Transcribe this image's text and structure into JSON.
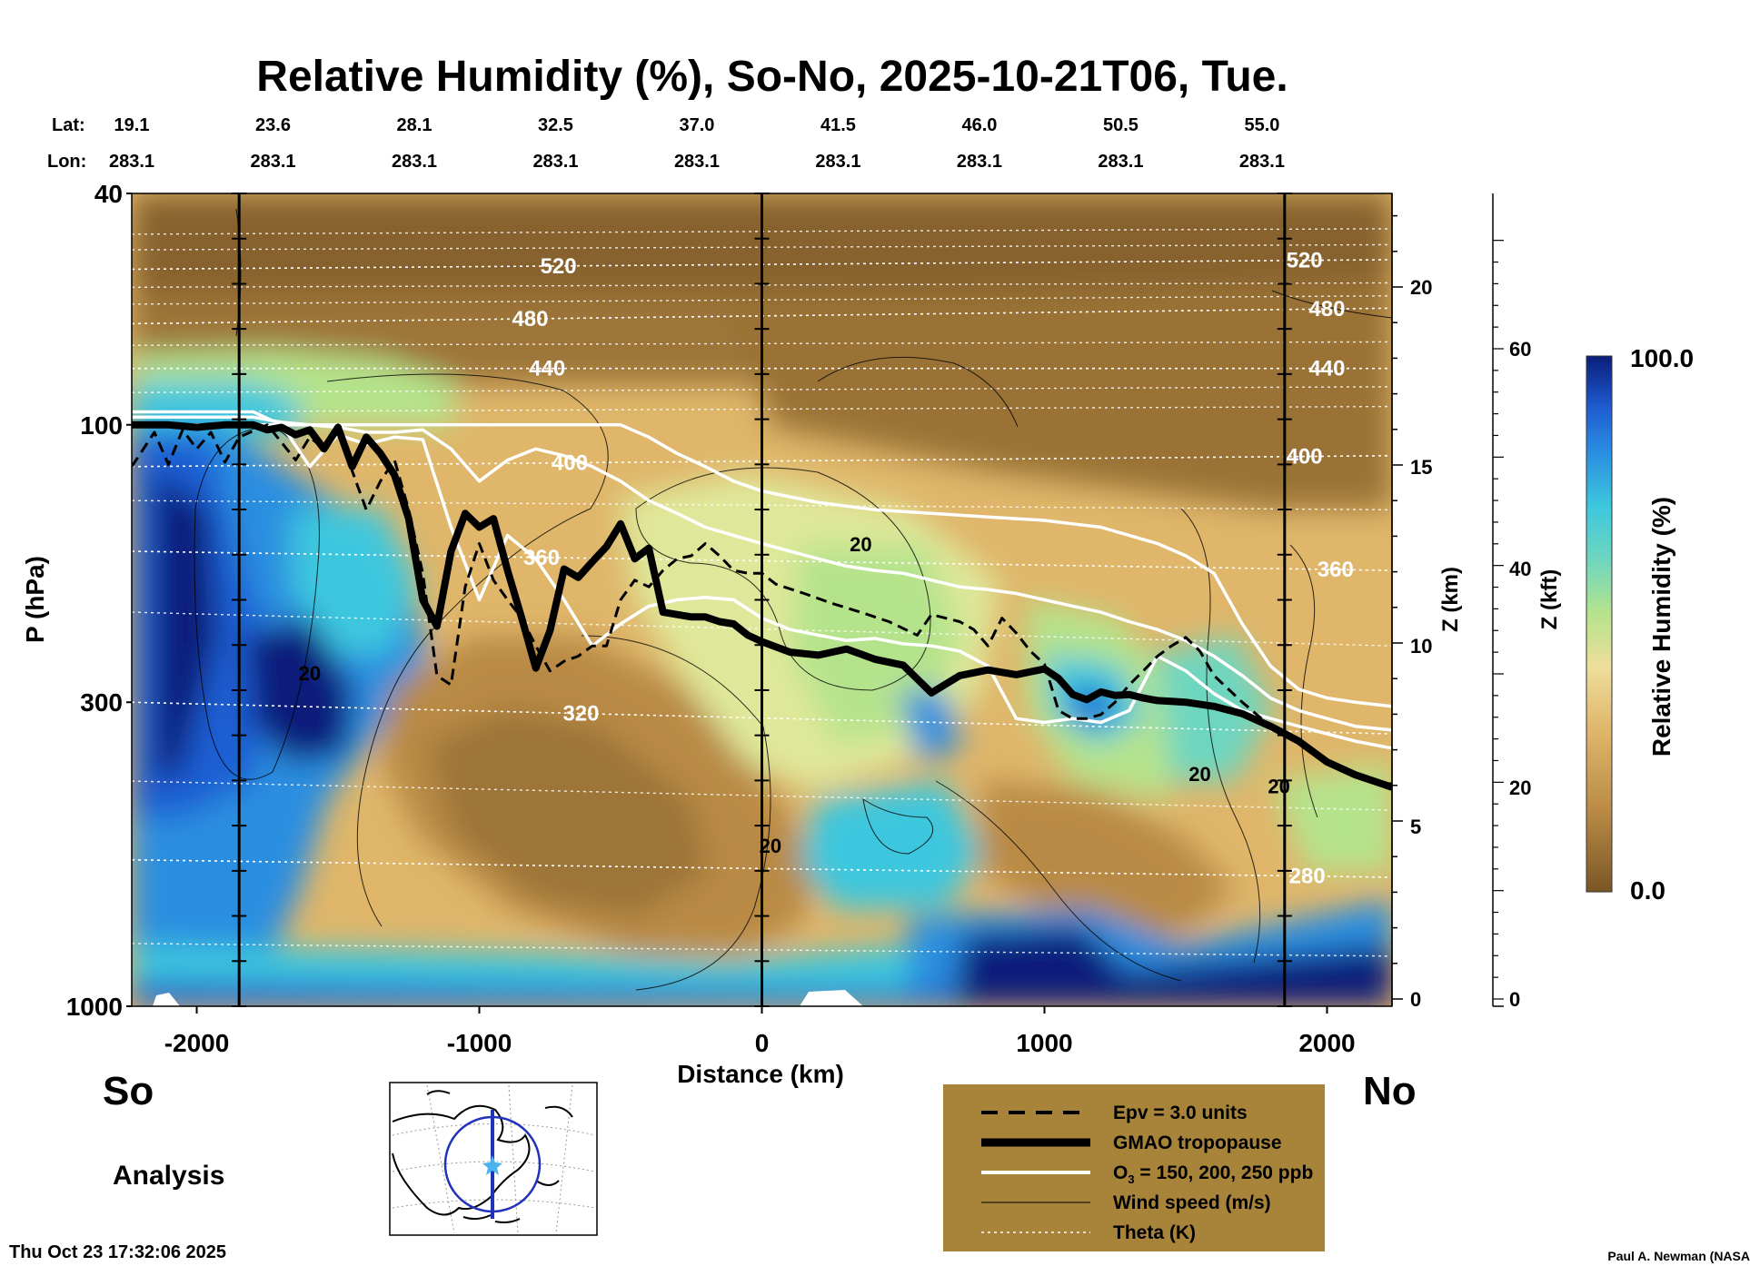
{
  "chart_data": {
    "type": "heatmap",
    "title": "Relative Humidity (%), So-No, 2025-10-21T06, Tue.",
    "xlabel": "Distance (km)",
    "ylabel": "P (hPa)",
    "xlim": [
      -2230,
      2230
    ],
    "ylim": [
      1000,
      40
    ],
    "y_scale": "log",
    "x_ticks": [
      -2000,
      -1000,
      0,
      1000,
      2000
    ],
    "y_ticks": [
      40,
      100,
      300,
      1000
    ],
    "z_km_label": "Z (km)",
    "z_km_ticks": [
      0,
      5,
      10,
      15,
      20
    ],
    "z_kft_label": "Z (kft)",
    "z_kft_ticks": [
      0,
      20,
      40,
      60
    ],
    "lat_label": "Lat:",
    "lon_label": "Lon:",
    "lat_values": [
      "19.1",
      "23.6",
      "28.1",
      "32.5",
      "37.0",
      "41.5",
      "46.0",
      "50.5",
      "55.0"
    ],
    "lon_values": [
      "283.1",
      "283.1",
      "283.1",
      "283.1",
      "283.1",
      "283.1",
      "283.1",
      "283.1",
      "283.1"
    ],
    "station_x_km": [
      -2230,
      -1730,
      -1230,
      -730,
      -230,
      270,
      770,
      1270,
      1770
    ],
    "vertical_reference_lines_km": [
      -1850,
      0,
      1850
    ],
    "colorbar": {
      "label": "Relative Humidity (%)",
      "min_label": "0.0",
      "max_label": "100.0",
      "min": 0,
      "max": 100
    },
    "theta_isentropes_K": [
      {
        "label": "520",
        "p_left": 54,
        "p_right": 52,
        "labels_at_km": [
          -720,
          1920
        ]
      },
      {
        "label": "480",
        "p_left": 67,
        "p_right": 63,
        "labels_at_km": [
          -820,
          2000
        ]
      },
      {
        "label": "440",
        "p_left": 80,
        "p_right": 80,
        "labels_at_km": [
          -760,
          2000
        ]
      },
      {
        "label": "400",
        "p_left": 118,
        "p_right": 113,
        "labels_at_km": [
          -680,
          1920
        ]
      },
      {
        "label": "360",
        "p_left": 165,
        "p_right": 178,
        "labels_at_km": [
          -780,
          2030
        ]
      },
      {
        "label": "320",
        "p_left": 300,
        "p_right": 340,
        "labels_at_km": [
          -640
        ]
      },
      {
        "label": "280",
        "p_left": 560,
        "p_right": 600,
        "labels_at_km": [
          1930
        ]
      }
    ],
    "wind_speed_labels": [
      {
        "label": "20",
        "x_km": -1600,
        "p": 275
      },
      {
        "label": "20",
        "x_km": 350,
        "p": 165
      },
      {
        "label": "20",
        "x_km": 30,
        "p": 545
      },
      {
        "label": "20",
        "x_km": 1550,
        "p": 410
      },
      {
        "label": "20",
        "x_km": 1830,
        "p": 430
      }
    ],
    "series": [
      {
        "name": "GMAO tropopause",
        "x": [
          -2230,
          -2100,
          -2000,
          -1900,
          -1800,
          -1750,
          -1700,
          -1650,
          -1600,
          -1550,
          -1500,
          -1450,
          -1400,
          -1350,
          -1300,
          -1250,
          -1200,
          -1150,
          -1100,
          -1050,
          -1000,
          -950,
          -900,
          -850,
          -800,
          -750,
          -700,
          -650,
          -600,
          -550,
          -500,
          -450,
          -400,
          -350,
          -300,
          -250,
          -200,
          -150,
          -100,
          -50,
          0,
          100,
          200,
          300,
          400,
          500,
          600,
          700,
          800,
          900,
          1000,
          1050,
          1100,
          1150,
          1200,
          1250,
          1300,
          1350,
          1400,
          1450,
          1500,
          1600,
          1700,
          1800,
          1900,
          2000,
          2100,
          2230
        ],
        "p": [
          100,
          100,
          101,
          100,
          100,
          102,
          101,
          104,
          102,
          110,
          101,
          118,
          105,
          112,
          122,
          145,
          200,
          222,
          165,
          142,
          150,
          145,
          178,
          215,
          262,
          226,
          177,
          183,
          172,
          162,
          148,
          170,
          163,
          210,
          212,
          214,
          214,
          218,
          220,
          230,
          236,
          246,
          249,
          243,
          253,
          259,
          289,
          270,
          264,
          269,
          263,
          273,
          291,
          297,
          288,
          292,
          291,
          295,
          298,
          299,
          300,
          305,
          314,
          330,
          350,
          380,
          400,
          420
        ]
      },
      {
        "name": "Epv = 3.0 units",
        "x": [
          -2230,
          -2150,
          -2100,
          -2050,
          -2000,
          -1950,
          -1900,
          -1850,
          -1750,
          -1650,
          -1600,
          -1550,
          -1500,
          -1450,
          -1400,
          -1350,
          -1300,
          -1250,
          -1200,
          -1150,
          -1100,
          -1050,
          -1000,
          -950,
          -900,
          -850,
          -800,
          -750,
          -700,
          -650,
          -600,
          -550,
          -500,
          -450,
          -400,
          -350,
          -300,
          -250,
          -200,
          -150,
          -100,
          -50,
          0,
          50,
          150,
          250,
          350,
          450,
          550,
          600,
          650,
          700,
          750,
          800,
          850,
          900,
          950,
          1000,
          1050,
          1100,
          1150,
          1200,
          1250,
          1300,
          1350,
          1400,
          1450,
          1500,
          1550,
          1600,
          1700,
          1800,
          1900,
          2000,
          2100,
          2230
        ],
        "p": [
          118,
          103,
          117,
          102,
          110,
          103,
          116,
          105,
          100,
          115,
          105,
          110,
          100,
          120,
          140,
          125,
          115,
          140,
          180,
          270,
          280,
          190,
          160,
          185,
          200,
          215,
          240,
          265,
          255,
          250,
          240,
          240,
          200,
          185,
          190,
          178,
          170,
          168,
          160,
          168,
          178,
          180,
          180,
          188,
          195,
          203,
          210,
          218,
          230,
          212,
          215,
          218,
          225,
          240,
          215,
          228,
          245,
          258,
          310,
          320,
          320,
          315,
          300,
          280,
          265,
          250,
          240,
          232,
          245,
          270,
          300,
          330,
          350,
          380,
          400,
          415
        ]
      },
      {
        "name": "O3 = 150, 200, 250 ppb",
        "lines": [
          {
            "x": [
              -2230,
              -2100,
              -2000,
              -1900,
              -1800,
              -1700,
              -1600,
              -1500,
              -1400,
              -1300,
              -1200,
              -1100,
              -1000,
              -900,
              -800,
              -700,
              -600,
              -500,
              -400,
              -300,
              -200,
              -100,
              0,
              100,
              200,
              300,
              400,
              500,
              600,
              700,
              800,
              900,
              1000,
              1100,
              1200,
              1300,
              1400,
              1500,
              1600,
              1700,
              1800,
              1900,
              2000,
              2100,
              2230
            ],
            "p": [
              100,
              100,
              100,
              100,
              100,
              100,
              100,
              100,
              100,
              100,
              100,
              100,
              100,
              100,
              100,
              100,
              100,
              100,
              105,
              112,
              118,
              125,
              130,
              133,
              136,
              138,
              140,
              141,
              142,
              143,
              144,
              145,
              146,
              148,
              150,
              155,
              160,
              168,
              180,
              220,
              260,
              285,
              295,
              300,
              305
            ]
          },
          {
            "x": [
              -2230,
              -2100,
              -2000,
              -1900,
              -1800,
              -1700,
              -1600,
              -1500,
              -1400,
              -1300,
              -1200,
              -1100,
              -1000,
              -900,
              -800,
              -700,
              -600,
              -500,
              -400,
              -300,
              -200,
              -100,
              0,
              100,
              200,
              300,
              400,
              500,
              600,
              700,
              800,
              900,
              1000,
              1100,
              1200,
              1300,
              1400,
              1500,
              1600,
              1700,
              1800,
              1900,
              2000,
              2100,
              2230
            ],
            "p": [
              97,
              97,
              97,
              97,
              97,
              99,
              100,
              101,
              103,
              103,
              102,
              110,
              125,
              115,
              110,
              113,
              118,
              125,
              135,
              142,
              150,
              155,
              160,
              165,
              170,
              175,
              178,
              180,
              185,
              190,
              192,
              195,
              200,
              205,
              210,
              218,
              225,
              235,
              250,
              270,
              295,
              310,
              320,
              330,
              335
            ]
          },
          {
            "x": [
              -2230,
              -2100,
              -2000,
              -1900,
              -1800,
              -1700,
              -1600,
              -1500,
              -1400,
              -1300,
              -1200,
              -1100,
              -1000,
              -900,
              -800,
              -700,
              -600,
              -500,
              -400,
              -300,
              -200,
              -100,
              0,
              100,
              200,
              300,
              400,
              500,
              600,
              700,
              800,
              900,
              1000,
              1100,
              1200,
              1300,
              1400,
              1500,
              1600,
              1700,
              1800,
              1900,
              2000,
              2100,
              2230
            ],
            "p": [
              95,
              95,
              95,
              95,
              95,
              100,
              118,
              104,
              108,
              105,
              106,
              150,
              200,
              155,
              170,
              200,
              240,
              220,
              205,
              200,
              198,
              200,
              215,
              225,
              230,
              235,
              233,
              238,
              240,
              245,
              260,
              320,
              325,
              320,
              325,
              310,
              250,
              265,
              290,
              310,
              320,
              330,
              340,
              350,
              360
            ]
          }
        ]
      }
    ]
  },
  "labels": {
    "south": "So",
    "north": "No",
    "analysis": "Analysis",
    "timestamp": "Thu Oct 23 17:32:06 2025",
    "credit": "Paul A. Newman (NASA"
  },
  "legend": {
    "items": [
      {
        "style": "dashed",
        "label": "Epv = 3.0 units"
      },
      {
        "style": "thick",
        "label": "GMAO tropopause"
      },
      {
        "style": "white",
        "label_main": "O",
        "label_sub": "3",
        "label_rest": " = 150, 200, 250 ppb"
      },
      {
        "style": "thin",
        "label": "Wind speed (m/s)"
      },
      {
        "style": "dotted",
        "label": "Theta (K)"
      }
    ]
  },
  "colors": {
    "legend_bg": "#a8833a",
    "brown_dark": "#7a5626",
    "tan": "#dfb66a",
    "pale": "#eede9c",
    "green": "#b5e38c",
    "cyan": "#3dc7de",
    "blue": "#1f5fd3",
    "navy": "#0a1d7a"
  }
}
